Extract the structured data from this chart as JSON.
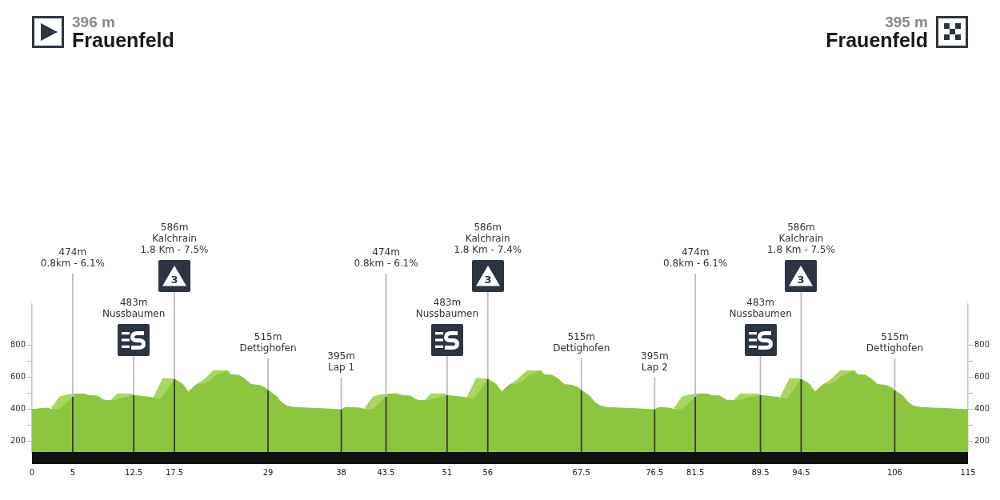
{
  "chart_data": {
    "type": "area",
    "xlim": [
      0,
      115
    ],
    "xticks": [
      0,
      5,
      12.5,
      17.5,
      29,
      38,
      43.5,
      51,
      56,
      67.5,
      76.5,
      81.5,
      89.5,
      94.5,
      106,
      115
    ],
    "ylim": [
      130,
      1055
    ],
    "yticks": [
      200,
      {
        "value": 300,
        "label": null
      },
      400,
      {
        "value": 500,
        "label": null
      },
      600,
      {
        "value": 700,
        "label": null
      },
      800
    ],
    "y2lim": [
      130,
      1055
    ],
    "y2ticks": [
      200,
      {
        "value": 300,
        "label": null
      },
      400,
      {
        "value": 500,
        "label": null
      },
      600,
      {
        "value": 700,
        "label": null
      },
      800
    ],
    "series": [
      {
        "color": "#8cc63f",
        "x": [
          0,
          1.8,
          2.2,
          2.6,
          3.4,
          5,
          5.4,
          6.4,
          7,
          8,
          8.7,
          9,
          10,
          10.3,
          12.5,
          13.6,
          14.6,
          15.7,
          16.2,
          16.9,
          17.5,
          18.5,
          19.2,
          19.5,
          20.2,
          21.1,
          21.8,
          22.5,
          23.9,
          24.4,
          25.4,
          26.1,
          26.9,
          27.9,
          28.7,
          29,
          30,
          30.6,
          31.3,
          32.3,
          35.2,
          38,
          38.5,
          40.3,
          40.7,
          41.1,
          41.9,
          43.5,
          43.9,
          44.9,
          45.5,
          46.5,
          47.2,
          47.5,
          48.5,
          48.8,
          51,
          52.1,
          53.1,
          54.2,
          54.7,
          55.4,
          56,
          57,
          57.7,
          58,
          58.7,
          59.6,
          60.3,
          61,
          62.4,
          62.9,
          63.9,
          64.6,
          65.4,
          66.4,
          67.2,
          67.5,
          68.5,
          69.1,
          69.8,
          70.8,
          73.7,
          76.5,
          77,
          78.3,
          78.7,
          79.1,
          79.9,
          81.5,
          81.9,
          82.9,
          83.5,
          84.5,
          85.2,
          85.5,
          86.5,
          86.8,
          89.5,
          90.6,
          91.6,
          92.7,
          93.2,
          93.9,
          94.5,
          95.5,
          96.2,
          96.5,
          97.2,
          98.1,
          98.8,
          99.5,
          100.9,
          101.4,
          102.4,
          103.1,
          103.9,
          104.9,
          105.7,
          106,
          107,
          107.6,
          108.3,
          109.3,
          112.2,
          115
        ],
        "values": [
          396,
          405,
          400,
          392,
          397,
          474,
          493,
          493,
          483,
          480,
          458,
          452,
          452,
          455,
          483,
          478,
          472,
          458,
          488,
          538,
          586,
          555,
          505,
          520,
          552,
          555,
          572,
          605,
          635,
          613,
          610,
          588,
          552,
          547,
          530,
          515,
          480,
          442,
          418,
          408,
          402,
          395,
          408,
          405,
          400,
          392,
          397,
          474,
          493,
          493,
          483,
          480,
          458,
          452,
          452,
          455,
          483,
          478,
          472,
          458,
          488,
          538,
          586,
          555,
          505,
          520,
          552,
          555,
          572,
          605,
          635,
          613,
          610,
          588,
          552,
          547,
          530,
          515,
          480,
          442,
          418,
          408,
          402,
          395,
          408,
          405,
          400,
          392,
          397,
          474,
          493,
          493,
          483,
          480,
          458,
          452,
          452,
          455,
          483,
          478,
          472,
          458,
          488,
          538,
          586,
          555,
          505,
          520,
          552,
          555,
          572,
          605,
          635,
          613,
          610,
          588,
          552,
          547,
          530,
          515,
          480,
          442,
          418,
          408,
          402,
          395
        ]
      },
      {
        "color": "#aad65f",
        "x": [
          2.4,
          3.4,
          4.4,
          5.4,
          7,
          9.7,
          10.5,
          12.3,
          12.5,
          13.6,
          14.9,
          16.1,
          17.5,
          18.5,
          20.3,
          21.1,
          22.3,
          24.1,
          24.4,
          30,
          40.9,
          41.9,
          42.9,
          43.9,
          45.5,
          48.2,
          49,
          50.8,
          51,
          52.1,
          53.4,
          54.6,
          56,
          57,
          58.8,
          59.6,
          60.8,
          62.6,
          62.9,
          68.5,
          78.9,
          79.9,
          80.9,
          81.9,
          83.5,
          86.2,
          87,
          89.3,
          89.5,
          90.6,
          91.9,
          93.1,
          94.5,
          95.5,
          97.3,
          98.1,
          99.3,
          101.1,
          101.4
        ],
        "values": [
          405,
          475,
          488,
          493,
          null,
          452,
          493,
          493,
          483,
          null,
          467,
          590,
          586,
          null,
          555,
          580,
          638,
          638,
          613,
          null,
          405,
          475,
          488,
          493,
          null,
          452,
          493,
          493,
          483,
          null,
          467,
          590,
          586,
          null,
          555,
          580,
          638,
          638,
          613,
          null,
          405,
          475,
          488,
          493,
          null,
          452,
          493,
          493,
          483,
          null,
          467,
          590,
          586,
          null,
          555,
          580,
          638,
          638,
          613
        ]
      }
    ],
    "ref_lines": [
      {
        "axis": "x",
        "value": 5,
        "label": "474m\n0.8km - 6.1%"
      },
      {
        "axis": "x",
        "value": 12.5,
        "label": "483m\nNussbaumen"
      },
      {
        "axis": "x",
        "value": 17.5,
        "label": "586m\nKalchrain\n1.8 Km - 7.5%"
      },
      {
        "axis": "x",
        "value": 29,
        "label": "515m\nDettighofen"
      },
      {
        "axis": "x",
        "value": 38,
        "label": "395m\nLap 1"
      },
      {
        "axis": "x",
        "value": 43.5,
        "label": "474m\n0.8km - 6.1%"
      },
      {
        "axis": "x",
        "value": 51,
        "label": "483m\nNussbaumen"
      },
      {
        "axis": "x",
        "value": 56,
        "label": "586m\nKalchrain\n1.8 Km - 7.4%"
      },
      {
        "axis": "x",
        "value": 67.5,
        "label": "515m\nDettighofen"
      },
      {
        "axis": "x",
        "value": 76.5,
        "label": "395m\nLap 2"
      },
      {
        "axis": "x",
        "value": 81.5,
        "label": "474m\n0.8km - 6.1%"
      },
      {
        "axis": "x",
        "value": 89.5,
        "label": "483m\nNussbaumen"
      },
      {
        "axis": "x",
        "value": 94.5,
        "label": "586m\nKalchrain\n1.8 Km - 7.5%"
      },
      {
        "axis": "x",
        "value": 106,
        "label": "515m\nDettighofen"
      }
    ],
    "annotations": [
      "396 m",
      "Frauenfeld",
      "395 m",
      "Frauenfeld",
      "3",
      "3",
      "3"
    ]
  }
}
